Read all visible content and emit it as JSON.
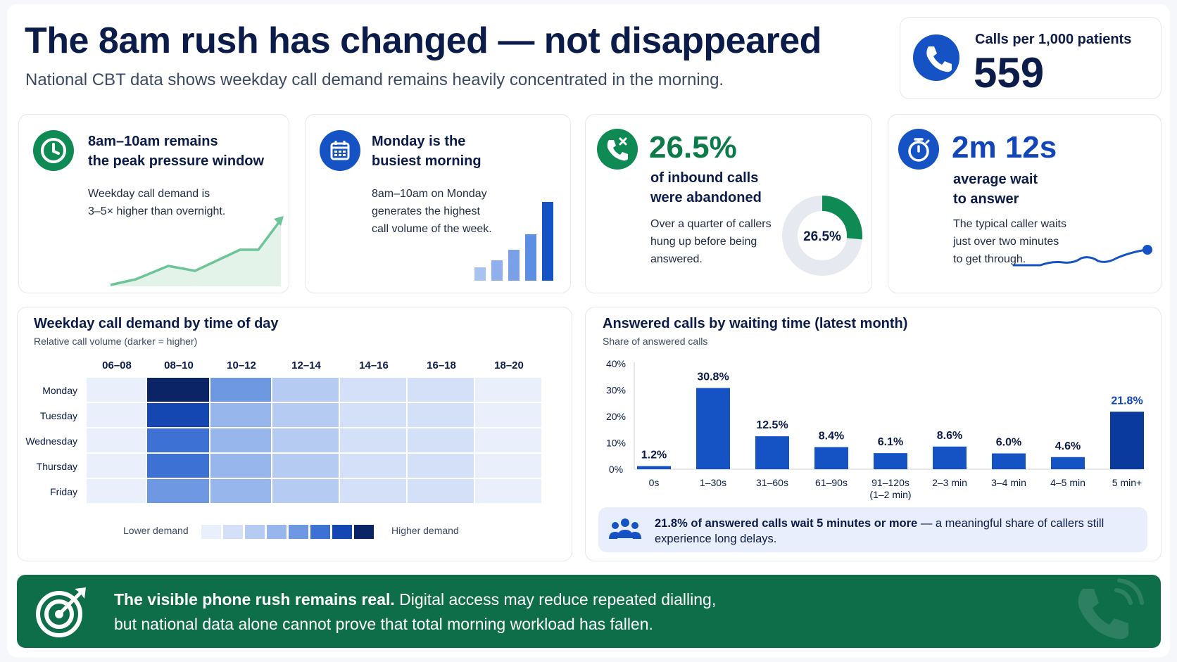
{
  "header": {
    "title": "The 8am rush has changed — not disappeared",
    "subtitle": "National CBT data shows weekday call demand remains heavily concentrated in the morning."
  },
  "kpi_top": {
    "label": "Calls per 1,000 patients",
    "value": "559",
    "icon": "phone-icon"
  },
  "cards": {
    "peak": {
      "icon": "clock-icon",
      "title_line1": "8am–10am remains",
      "title_line2": "the peak pressure window",
      "body_line1": "Weekday call demand is",
      "body_line2": "3–5× higher than overnight."
    },
    "monday": {
      "icon": "calendar-icon",
      "title_line1": "Monday is the",
      "title_line2": "busiest morning",
      "body_line1": "8am–10am on Monday",
      "body_line2": "generates the highest",
      "body_line3": "call volume of the week."
    },
    "abandoned": {
      "icon": "phone-missed-icon",
      "big": "26.5%",
      "title_line1": "of inbound calls",
      "title_line2": "were abandoned",
      "body_line1": "Over a quarter of callers",
      "body_line2": "hung up before being",
      "body_line3": "answered.",
      "donut_value": 26.5,
      "donut_label": "26.5%"
    },
    "wait": {
      "icon": "stopwatch-icon",
      "big": "2m 12s",
      "title_line1": "average wait",
      "title_line2": "to answer",
      "body_line1": "The typical caller waits",
      "body_line2": "just over two minutes",
      "body_line3": "to get through."
    }
  },
  "heatmap": {
    "title": "Weekday call demand by time of day",
    "subtitle": "Relative call volume (darker = higher)",
    "columns": [
      "06–08",
      "08–10",
      "10–12",
      "12–14",
      "14–16",
      "16–18",
      "18–20"
    ],
    "rows": [
      "Monday",
      "Tuesday",
      "Wednesday",
      "Thursday",
      "Friday"
    ],
    "levels": [
      [
        1,
        8,
        5,
        3,
        2,
        2,
        1
      ],
      [
        1,
        7,
        4,
        3,
        2,
        2,
        1
      ],
      [
        1,
        6,
        4,
        3,
        2,
        2,
        1
      ],
      [
        1,
        6,
        4,
        3,
        2,
        2,
        1
      ],
      [
        1,
        5,
        4,
        3,
        2,
        2,
        1
      ]
    ],
    "legend_low": "Lower demand",
    "legend_high": "Higher demand",
    "scale_colors": [
      "#eaf0fb",
      "#d3e0f7",
      "#b5cbf2",
      "#97b6ec",
      "#6f98e2",
      "#3d72d4",
      "#1547b3",
      "#0a2466"
    ]
  },
  "chart_data": {
    "type": "bar",
    "title": "Answered calls by waiting time (latest month)",
    "subtitle": "Share of answered calls",
    "categories": [
      "0s",
      "1–30s",
      "31–60s",
      "61–90s",
      "91–120s",
      "2–3 min",
      "3–4 min",
      "4–5 min",
      "5 min+"
    ],
    "category_sublabels": [
      "",
      "",
      "",
      "",
      "(1–2 min)",
      "",
      "",
      "",
      ""
    ],
    "values": [
      1.2,
      30.8,
      12.5,
      8.4,
      6.1,
      8.6,
      6.0,
      4.6,
      21.8
    ],
    "value_labels": [
      "1.2%",
      "30.8%",
      "12.5%",
      "8.4%",
      "6.1%",
      "8.6%",
      "6.0%",
      "4.6%",
      "21.8%"
    ],
    "yticks": [
      "0%",
      "10%",
      "20%",
      "30%",
      "40%"
    ],
    "ylim": [
      0,
      40
    ],
    "bar_color": "#1552c4",
    "highlight_color": "#0b3a9e"
  },
  "callout": {
    "icon": "users-icon",
    "bold": "21.8% of answered calls wait 5 minutes or more",
    "rest": " — a meaningful share of callers still experience long delays."
  },
  "banner": {
    "icon": "target-icon",
    "bold": "The visible phone rush remains real.",
    "line1_rest": "  Digital access may reduce repeated dialling,",
    "line2": "but national data alone cannot prove that total morning workload has fallen."
  }
}
